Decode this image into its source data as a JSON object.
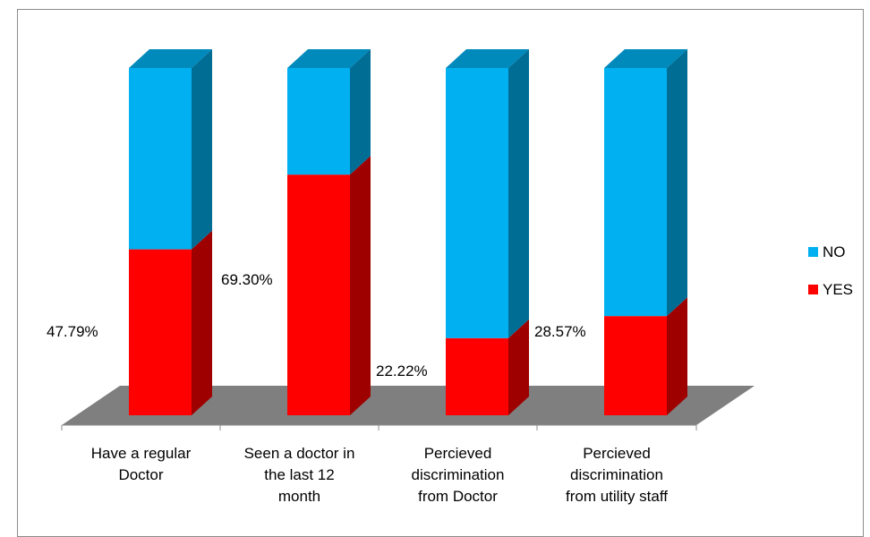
{
  "chart_data": {
    "type": "bar",
    "stacked": true,
    "percent_stacked": true,
    "three_d": true,
    "categories": [
      [
        "Have a regular",
        "Doctor"
      ],
      [
        "Seen a doctor in",
        "the last 12",
        "month"
      ],
      [
        "Percieved",
        "discrimination",
        "from Doctor"
      ],
      [
        "Percieved",
        "discrimination",
        "from utility staff"
      ]
    ],
    "series": [
      {
        "name": "YES",
        "color": "#ff0000",
        "values": [
          47.79,
          69.3,
          22.22,
          28.57
        ]
      },
      {
        "name": "NO",
        "color": "#00b0f0",
        "values": [
          52.21,
          30.7,
          77.78,
          71.43
        ]
      }
    ],
    "data_labels": [
      "47.79%",
      "69.30%",
      "22.22%",
      "28.57%"
    ],
    "ylim": [
      0,
      100
    ],
    "legend_position": "right",
    "floor_color": "#7f7f7f",
    "title": "",
    "xlabel": "",
    "ylabel": ""
  }
}
